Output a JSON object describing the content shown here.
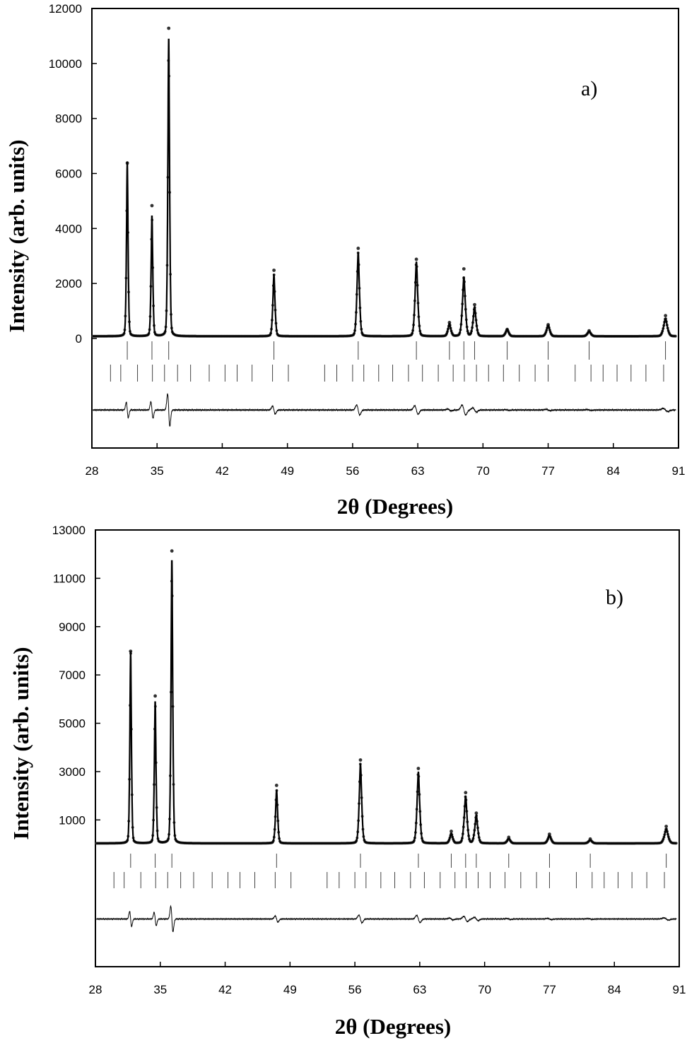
{
  "chart_data": [
    {
      "type": "line",
      "panel_label": "a)",
      "xlabel": "2θ (Degrees)",
      "ylabel": "Intensity (arb. units)",
      "xlim": [
        28,
        91
      ],
      "ylim_visible": [
        -4000,
        12000
      ],
      "x_ticks": [
        "28",
        "35",
        "42",
        "49",
        "56",
        "63",
        "70",
        "77",
        "84",
        "91"
      ],
      "y_ticks": [
        "0",
        "2000",
        "4000",
        "6000",
        "8000",
        "10000",
        "12000"
      ],
      "background": 80,
      "peaks": [
        {
          "x": 31.8,
          "y": 6350,
          "obs": 6300
        },
        {
          "x": 34.45,
          "y": 4400,
          "obs": 4750
        },
        {
          "x": 36.25,
          "y": 10900,
          "obs": 11200
        },
        {
          "x": 47.55,
          "y": 2250,
          "obs": 2400
        },
        {
          "x": 56.6,
          "y": 3050,
          "obs": 3200
        },
        {
          "x": 62.85,
          "y": 2700,
          "obs": 2800
        },
        {
          "x": 66.4,
          "y": 450,
          "obs": 500
        },
        {
          "x": 67.95,
          "y": 2150,
          "obs": 2450
        },
        {
          "x": 69.1,
          "y": 1050,
          "obs": 1150
        },
        {
          "x": 72.6,
          "y": 250,
          "obs": 250
        },
        {
          "x": 77.0,
          "y": 400,
          "obs": 420
        },
        {
          "x": 81.4,
          "y": 180,
          "obs": 200
        },
        {
          "x": 89.6,
          "y": 650,
          "obs": 750
        }
      ],
      "reflections_phase1": [
        31.8,
        34.45,
        36.25,
        47.55,
        56.6,
        62.85,
        66.4,
        67.95,
        69.1,
        72.6,
        77.0,
        81.4,
        89.6
      ],
      "reflections_phase2": [
        30.0,
        31.1,
        32.9,
        34.5,
        35.8,
        37.2,
        38.6,
        40.6,
        42.3,
        43.6,
        45.2,
        47.4,
        49.1,
        53.0,
        54.3,
        56.0,
        57.2,
        58.8,
        60.3,
        62.0,
        63.5,
        65.2,
        66.8,
        68.0,
        69.3,
        70.6,
        72.2,
        73.9,
        75.6,
        77.0,
        79.9,
        81.6,
        82.9,
        84.4,
        85.9,
        87.5,
        89.4
      ],
      "difference_baseline": -2600,
      "difference_scale": 0.12
    },
    {
      "type": "line",
      "panel_label": "b)",
      "xlabel": "2θ (Degrees)",
      "ylabel": "Intensity (arb. units)",
      "xlim": [
        28,
        91
      ],
      "ylim_visible": [
        -5000,
        13000
      ],
      "x_ticks": [
        "28",
        "35",
        "42",
        "49",
        "56",
        "63",
        "70",
        "77",
        "84",
        "91"
      ],
      "y_ticks": [
        "1000",
        "3000",
        "5000",
        "7000",
        "9000",
        "11000",
        "13000"
      ],
      "background": 30,
      "peaks": [
        {
          "x": 31.8,
          "y": 7950,
          "obs": 7950
        },
        {
          "x": 34.45,
          "y": 5900,
          "obs": 6100
        },
        {
          "x": 36.25,
          "y": 11800,
          "obs": 12100
        },
        {
          "x": 47.55,
          "y": 2200,
          "obs": 2400
        },
        {
          "x": 56.6,
          "y": 3300,
          "obs": 3450
        },
        {
          "x": 62.85,
          "y": 2950,
          "obs": 3100
        },
        {
          "x": 66.4,
          "y": 400,
          "obs": 500
        },
        {
          "x": 67.95,
          "y": 1950,
          "obs": 2100
        },
        {
          "x": 69.1,
          "y": 1150,
          "obs": 1250
        },
        {
          "x": 72.6,
          "y": 200,
          "obs": 250
        },
        {
          "x": 77.0,
          "y": 330,
          "obs": 380
        },
        {
          "x": 81.4,
          "y": 140,
          "obs": 180
        },
        {
          "x": 89.6,
          "y": 600,
          "obs": 700
        }
      ],
      "reflections_phase1": [
        31.8,
        34.45,
        36.25,
        47.55,
        56.6,
        62.85,
        66.4,
        67.95,
        69.1,
        72.6,
        77.0,
        81.4,
        89.6
      ],
      "reflections_phase2": [
        30.0,
        31.1,
        32.9,
        34.5,
        35.8,
        37.2,
        38.6,
        40.6,
        42.3,
        43.6,
        45.2,
        47.4,
        49.1,
        53.0,
        54.3,
        56.0,
        57.2,
        58.8,
        60.3,
        62.0,
        63.5,
        65.2,
        66.8,
        68.0,
        69.3,
        70.6,
        72.2,
        73.9,
        75.6,
        77.0,
        79.9,
        81.6,
        82.9,
        84.4,
        85.9,
        87.5,
        89.4
      ],
      "difference_baseline": -3100,
      "difference_scale": 0.1
    }
  ]
}
